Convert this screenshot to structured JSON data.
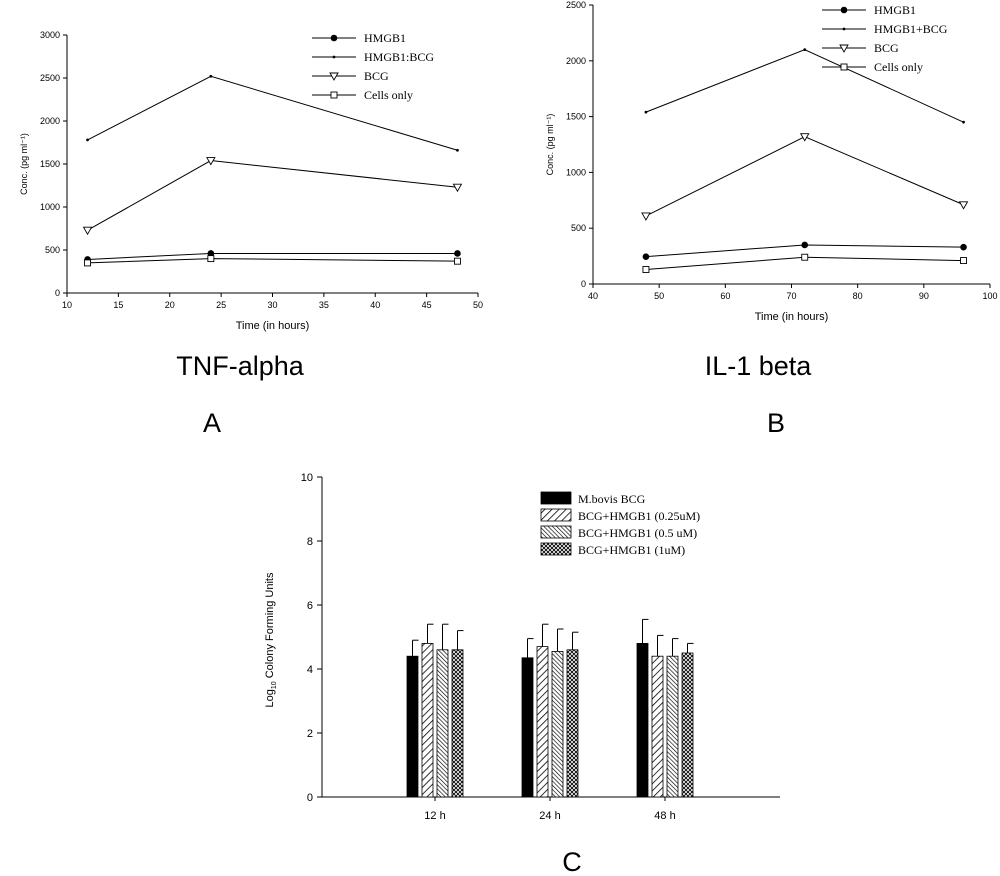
{
  "chart_data": [
    {
      "id": "A",
      "type": "line",
      "title": "TNF-alpha",
      "panel_label": "A",
      "xlabel": "Time (in hours)",
      "ylabel": "Conc. (pg ml⁻¹)",
      "xlim": [
        10,
        50
      ],
      "ylim": [
        0,
        3000
      ],
      "xticks": [
        "10",
        "15",
        "20",
        "25",
        "30",
        "35",
        "40",
        "45",
        "50"
      ],
      "yticks": [
        "0",
        "500",
        "1000",
        "1500",
        "2000",
        "2500",
        "3000"
      ],
      "x": [
        12,
        24,
        48
      ],
      "grid": false,
      "legend_position": "top-right",
      "series": [
        {
          "name": "HMGB1",
          "marker": "filled-circle",
          "values": [
            390,
            460,
            460
          ]
        },
        {
          "name": "HMGB1:BCG",
          "marker": "small-dot",
          "values": [
            1780,
            2520,
            1660
          ]
        },
        {
          "name": "BCG",
          "marker": "open-triangle-down",
          "values": [
            730,
            1540,
            1230
          ]
        },
        {
          "name": "Cells only",
          "marker": "open-square",
          "values": [
            350,
            400,
            370
          ]
        }
      ]
    },
    {
      "id": "B",
      "type": "line",
      "title": "IL-1 beta",
      "panel_label": "B",
      "xlabel": "Time (in hours)",
      "ylabel": "Conc. (pg ml⁻¹)",
      "xlim": [
        40,
        100
      ],
      "ylim": [
        0,
        2500
      ],
      "xticks": [
        "40",
        "50",
        "60",
        "70",
        "80",
        "90",
        "100"
      ],
      "yticks": [
        "0",
        "500",
        "1000",
        "1500",
        "2000",
        "2500"
      ],
      "x": [
        48,
        72,
        96
      ],
      "grid": false,
      "legend_position": "top-right",
      "series": [
        {
          "name": "HMGB1",
          "marker": "filled-circle",
          "values": [
            245,
            350,
            330
          ]
        },
        {
          "name": "HMGB1+BCG",
          "marker": "small-dot",
          "values": [
            1540,
            2100,
            1450
          ]
        },
        {
          "name": "BCG",
          "marker": "open-triangle-down",
          "values": [
            610,
            1320,
            710
          ]
        },
        {
          "name": "Cells only",
          "marker": "open-square",
          "values": [
            130,
            240,
            210
          ]
        }
      ]
    },
    {
      "id": "C",
      "type": "bar",
      "panel_label": "C",
      "ylabel_prefix": "Log",
      "ylabel_sub": "10",
      "ylabel_suffix": " Colony Forming Units",
      "ylim": [
        0,
        10
      ],
      "yticks": [
        "0",
        "2",
        "4",
        "6",
        "8",
        "10"
      ],
      "categories": [
        "12 h",
        "24 h",
        "48 h"
      ],
      "grid": false,
      "legend_position": "top-right",
      "series": [
        {
          "name": "M.bovis BCG",
          "pattern": "solid-black",
          "values": [
            4.4,
            4.35,
            4.8
          ],
          "errors": [
            0.5,
            0.6,
            0.75
          ]
        },
        {
          "name": "BCG+HMGB1 (0.25uM)",
          "pattern": "diagonal-hatch",
          "values": [
            4.8,
            4.7,
            4.4
          ],
          "errors": [
            0.6,
            0.7,
            0.65
          ]
        },
        {
          "name": "BCG+HMGB1 (0.5 uM)",
          "pattern": "dense-diagonal-hatch",
          "values": [
            4.6,
            4.55,
            4.4
          ],
          "errors": [
            0.8,
            0.7,
            0.55
          ]
        },
        {
          "name": "BCG+HMGB1 (1uM)",
          "pattern": "cross-hatch",
          "values": [
            4.6,
            4.6,
            4.5
          ],
          "errors": [
            0.6,
            0.55,
            0.3
          ]
        }
      ]
    }
  ]
}
